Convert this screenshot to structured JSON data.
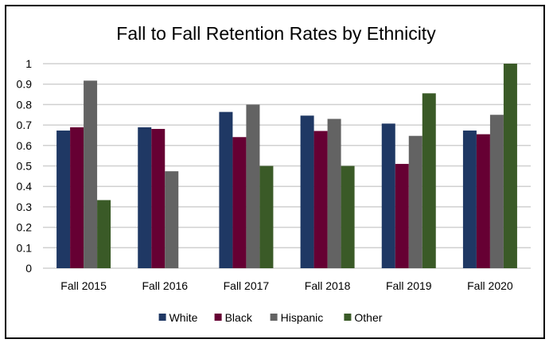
{
  "chart_data": {
    "type": "bar",
    "title": "Fall to Fall Retention Rates by Ethnicity",
    "xlabel": "",
    "ylabel": "",
    "ylim": [
      0,
      1
    ],
    "yticks": [
      "0",
      "0.1",
      "0.2",
      "0.3",
      "0.4",
      "0.5",
      "0.6",
      "0.7",
      "0.8",
      "0.9",
      "1"
    ],
    "ytick_values": [
      0,
      0.1,
      0.2,
      0.3,
      0.4,
      0.5,
      0.6,
      0.7,
      0.8,
      0.9,
      1
    ],
    "grid": true,
    "legend_position": "bottom",
    "categories": [
      "Fall 2015",
      "Fall 2016",
      "Fall 2017",
      "Fall 2018",
      "Fall 2019",
      "Fall 2020"
    ],
    "series": [
      {
        "name": "White",
        "color": "#1f3864",
        "values": [
          0.673,
          0.689,
          0.764,
          0.746,
          0.707,
          0.673
        ]
      },
      {
        "name": "Black",
        "color": "#660033",
        "values": [
          0.689,
          0.681,
          0.641,
          0.671,
          0.51,
          0.655
        ]
      },
      {
        "name": "Hispanic",
        "color": "#636363",
        "values": [
          0.917,
          0.474,
          0.8,
          0.73,
          0.647,
          0.75
        ]
      },
      {
        "name": "Other",
        "color": "#3a5a27",
        "values": [
          0.333,
          0,
          0.5,
          0.5,
          0.855,
          1.0
        ]
      }
    ]
  }
}
